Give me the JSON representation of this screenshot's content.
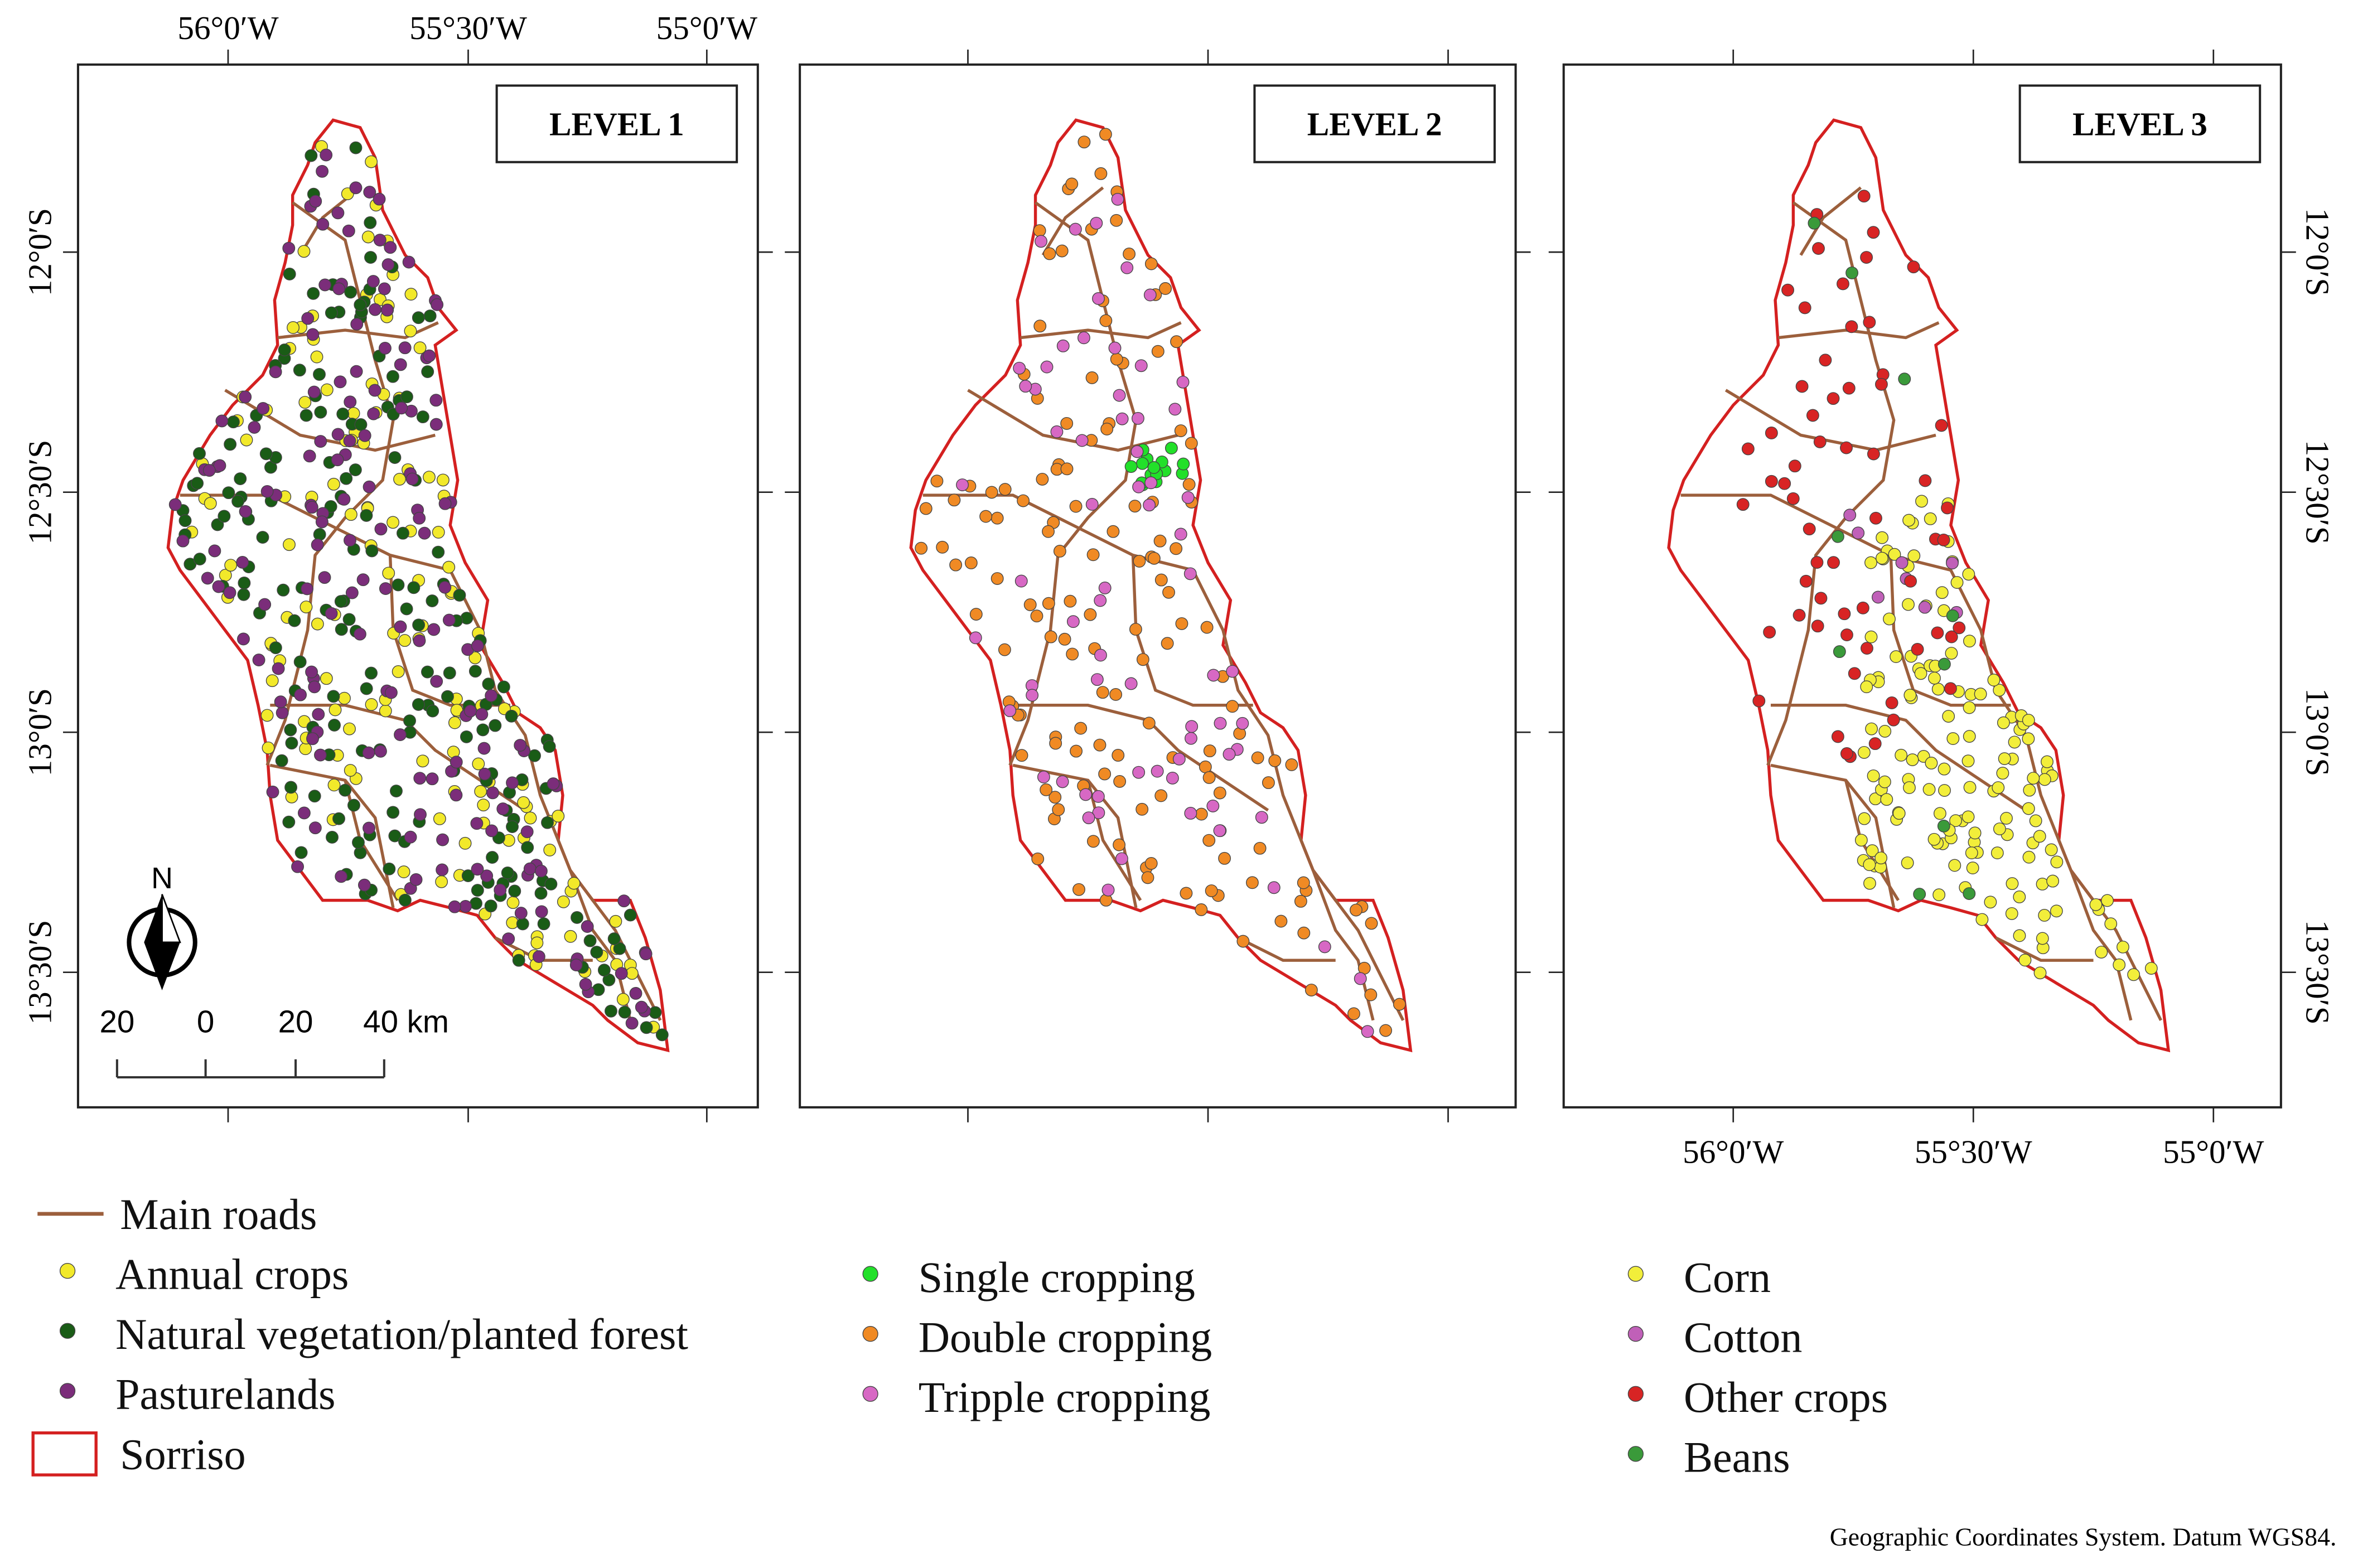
{
  "panels": [
    {
      "title": "LEVEL 1"
    },
    {
      "title": "LEVEL 2"
    },
    {
      "title": "LEVEL 3"
    }
  ],
  "axes": {
    "longitude_labels": [
      "56°0′W",
      "55°30′W",
      "55°0′W"
    ],
    "latitude_labels": [
      "12°0′S",
      "12°30′S",
      "13°0′S",
      "13°30′S"
    ]
  },
  "scale_bar": {
    "labels": [
      "20",
      "0",
      "20",
      "40 km"
    ]
  },
  "north_arrow": "N",
  "legends": [
    {
      "items": [
        {
          "label": "Main roads",
          "symbol": "line",
          "color": "#9c5f3c"
        },
        {
          "label": "Annual crops",
          "symbol": "dot",
          "color": "#f2e92a"
        },
        {
          "label": "Natural vegetation/planted forest",
          "symbol": "dot",
          "color": "#1a5c16"
        },
        {
          "label": "Pasturelands",
          "symbol": "dot",
          "color": "#7b2d7a"
        },
        {
          "label": "Sorriso",
          "symbol": "box",
          "color": "#d42020"
        }
      ]
    },
    {
      "items": [
        {
          "label": "Single cropping",
          "symbol": "dot",
          "color": "#22e02a"
        },
        {
          "label": "Double cropping",
          "symbol": "dot",
          "color": "#f08a24"
        },
        {
          "label": "Tripple cropping",
          "symbol": "dot",
          "color": "#d768c4"
        }
      ]
    },
    {
      "items": [
        {
          "label": "Corn",
          "symbol": "dot",
          "color": "#f2ee3a"
        },
        {
          "label": "Cotton",
          "symbol": "dot",
          "color": "#c060b8"
        },
        {
          "label": "Other crops",
          "symbol": "dot",
          "color": "#d82424"
        },
        {
          "label": "Beans",
          "symbol": "dot",
          "color": "#3a9a3a"
        }
      ]
    }
  ],
  "footnote": "Geographic Coordinates System. Datum WGS84."
}
